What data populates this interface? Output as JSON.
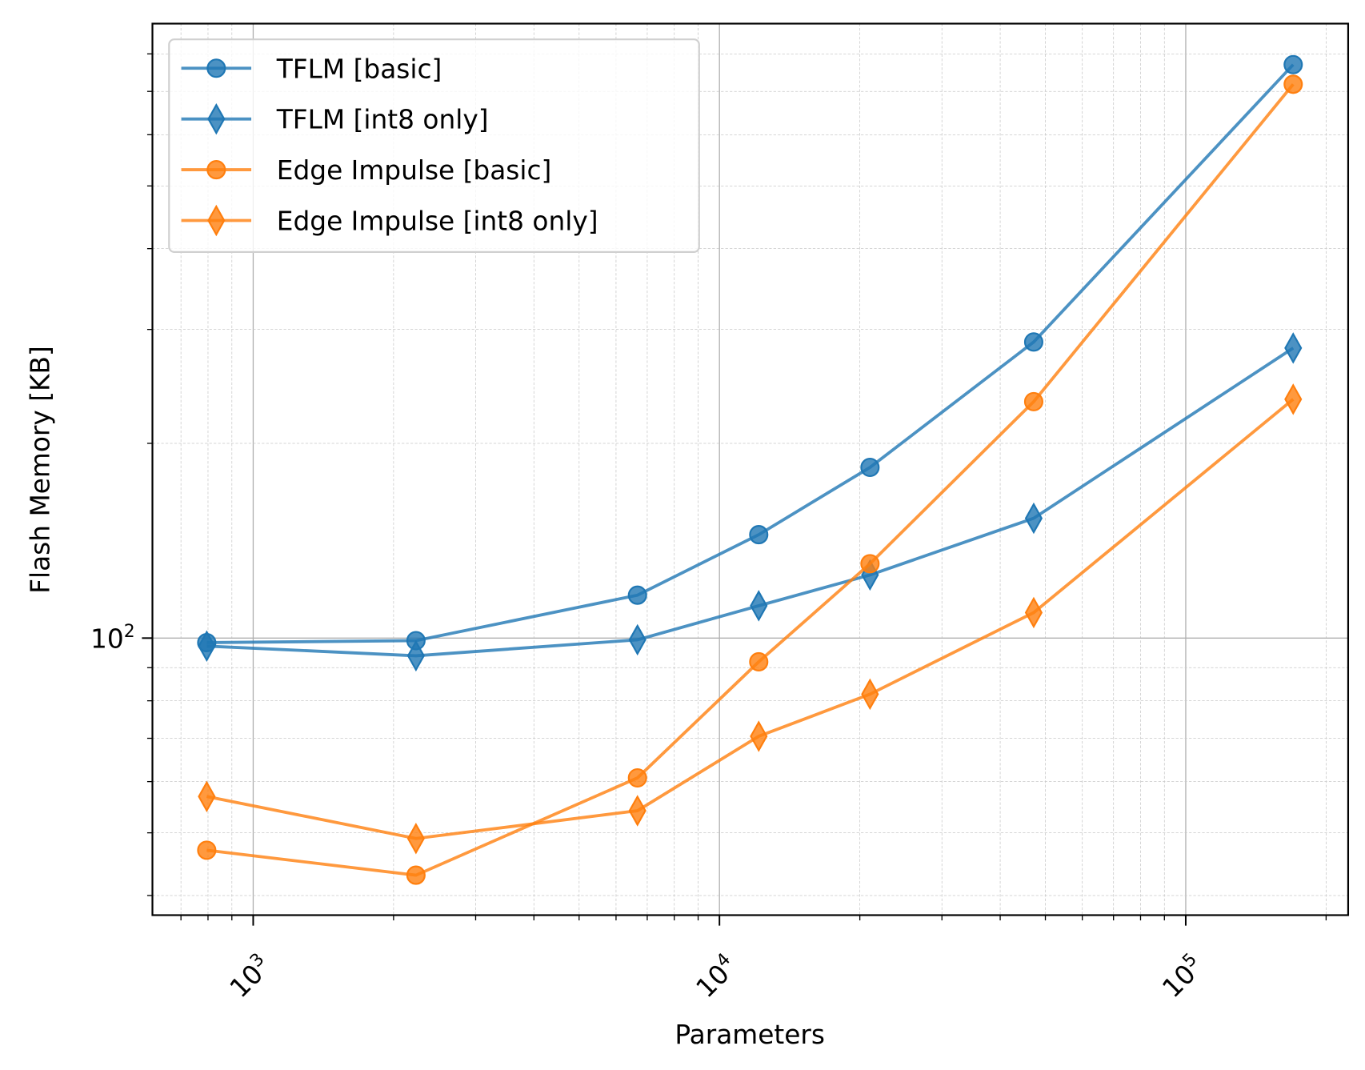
{
  "chart_data": {
    "type": "line",
    "title": "",
    "xlabel": "Parameters",
    "ylabel": "Flash Memory [KB]",
    "xscale": "log",
    "yscale": "log",
    "xlim": [
      608,
      223000
    ],
    "ylim": [
      37.3,
      891
    ],
    "x_tick_labels": [
      {
        "base": "10",
        "exp": "3",
        "value": 1000
      },
      {
        "base": "10",
        "exp": "4",
        "value": 10000
      },
      {
        "base": "10",
        "exp": "5",
        "value": 100000
      }
    ],
    "y_tick_labels": [
      {
        "base": "10",
        "exp": "2",
        "value": 100
      }
    ],
    "grid": "major and minor",
    "legend_position": "top-left",
    "x": [
      795,
      2234,
      6670,
      12140,
      21030,
      47200,
      170000
    ],
    "series": [
      {
        "name": "TFLM [basic]",
        "marker": "circle",
        "color": "#1f77b4",
        "values": [
          98.4,
          99.1,
          116.5,
          144.5,
          183.6,
          286.9,
          770
        ]
      },
      {
        "name": "TFLM [int8 only]",
        "marker": "diamond",
        "color": "#1f77b4",
        "values": [
          97.2,
          93.9,
          99.4,
          112.2,
          125.2,
          153.2,
          280.8
        ]
      },
      {
        "name": "Edge Impulse [basic]",
        "marker": "circle",
        "color": "#ff7f0e",
        "values": [
          47.0,
          43.0,
          60.8,
          91.9,
          130.3,
          232,
          718
        ]
      },
      {
        "name": "Edge Impulse [int8 only]",
        "marker": "diamond",
        "color": "#ff7f0e",
        "values": [
          56.9,
          49.0,
          54.1,
          70.5,
          81.9,
          109.5,
          234
        ]
      }
    ]
  }
}
